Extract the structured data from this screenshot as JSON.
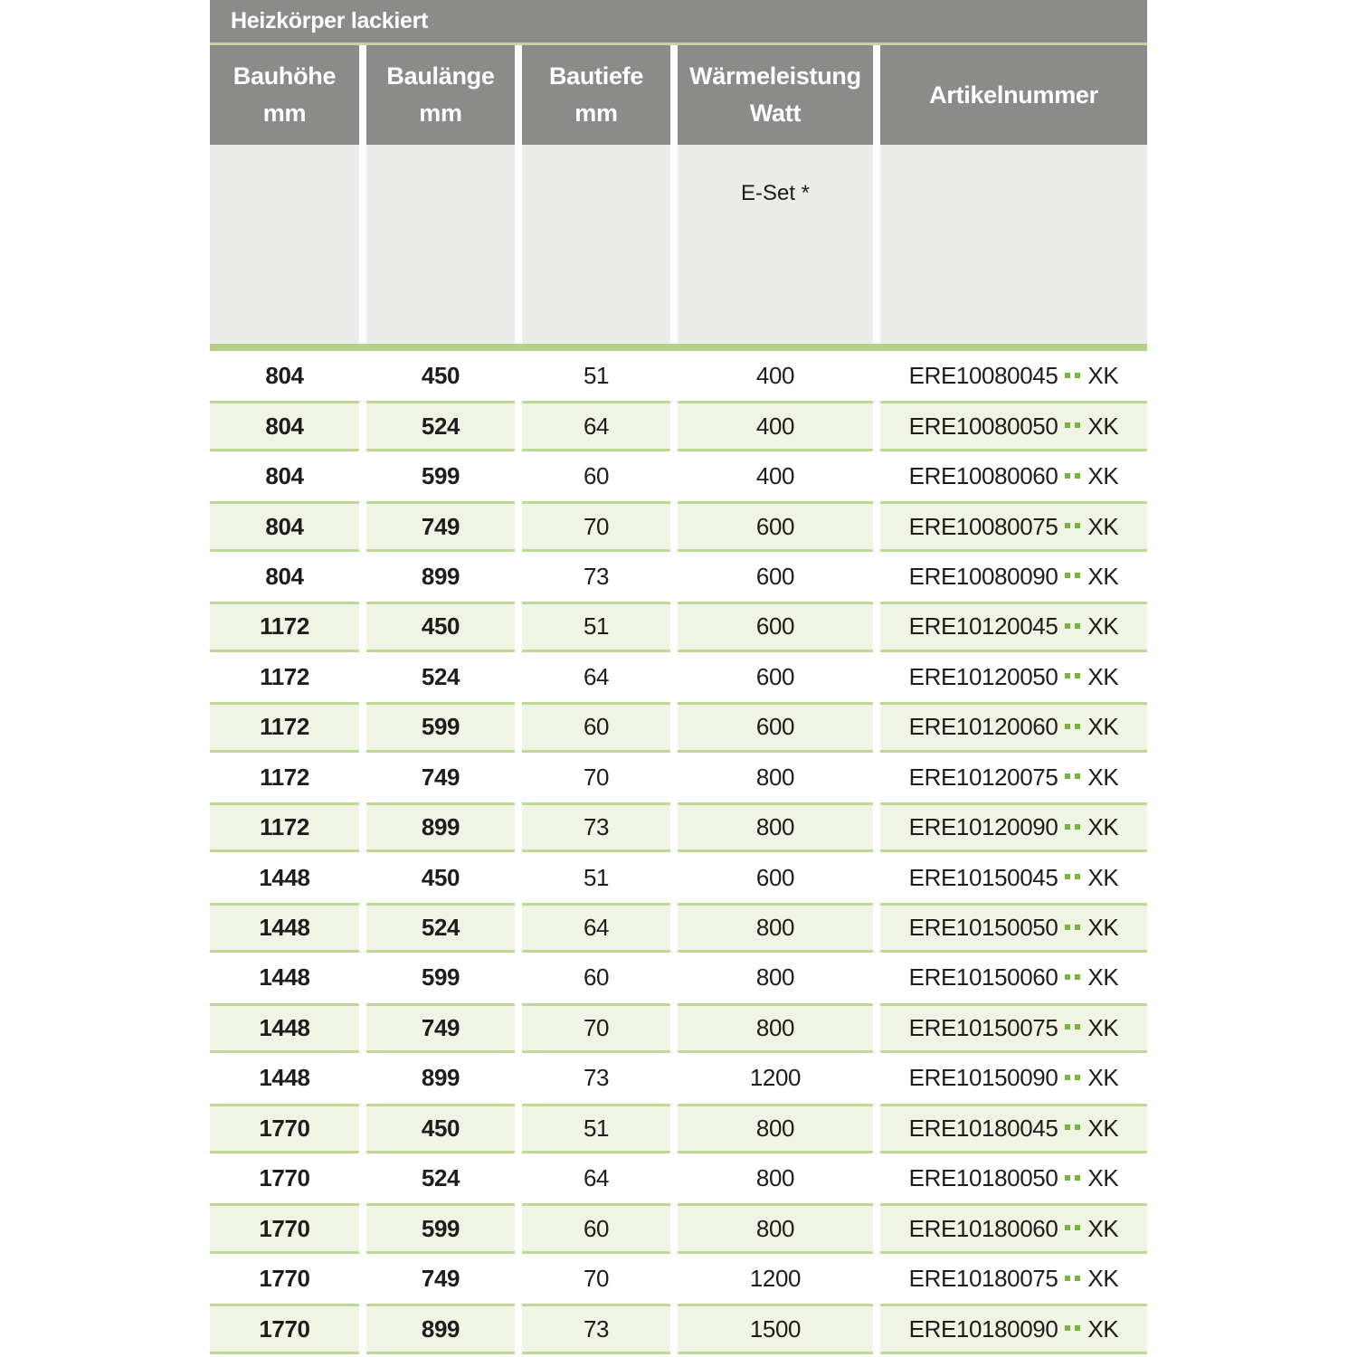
{
  "table": {
    "title": "Heizkörper lackiert",
    "columns": [
      {
        "label": "Bauhöhe",
        "unit": "mm"
      },
      {
        "label": "Baulänge",
        "unit": "mm"
      },
      {
        "label": "Bautiefe",
        "unit": "mm"
      },
      {
        "label": "Wärmeleistung",
        "unit": "Watt"
      },
      {
        "label": "Artikelnummer",
        "unit": ""
      }
    ],
    "subheader": {
      "eset_label": "E-Set *"
    },
    "rows": [
      {
        "bauhoehe": "804",
        "baulaenge": "450",
        "bautiefe": "51",
        "watt": "400",
        "artikel_code": "ERE10080045",
        "artikel_dots": "..",
        "artikel_suffix": "XK"
      },
      {
        "bauhoehe": "804",
        "baulaenge": "524",
        "bautiefe": "64",
        "watt": "400",
        "artikel_code": "ERE10080050",
        "artikel_dots": "..",
        "artikel_suffix": "XK"
      },
      {
        "bauhoehe": "804",
        "baulaenge": "599",
        "bautiefe": "60",
        "watt": "400",
        "artikel_code": "ERE10080060",
        "artikel_dots": "..",
        "artikel_suffix": "XK"
      },
      {
        "bauhoehe": "804",
        "baulaenge": "749",
        "bautiefe": "70",
        "watt": "600",
        "artikel_code": "ERE10080075",
        "artikel_dots": "..",
        "artikel_suffix": "XK"
      },
      {
        "bauhoehe": "804",
        "baulaenge": "899",
        "bautiefe": "73",
        "watt": "600",
        "artikel_code": "ERE10080090",
        "artikel_dots": "..",
        "artikel_suffix": "XK"
      },
      {
        "bauhoehe": "1172",
        "baulaenge": "450",
        "bautiefe": "51",
        "watt": "600",
        "artikel_code": "ERE10120045",
        "artikel_dots": "..",
        "artikel_suffix": "XK"
      },
      {
        "bauhoehe": "1172",
        "baulaenge": "524",
        "bautiefe": "64",
        "watt": "600",
        "artikel_code": "ERE10120050",
        "artikel_dots": "..",
        "artikel_suffix": "XK"
      },
      {
        "bauhoehe": "1172",
        "baulaenge": "599",
        "bautiefe": "60",
        "watt": "600",
        "artikel_code": "ERE10120060",
        "artikel_dots": "..",
        "artikel_suffix": "XK"
      },
      {
        "bauhoehe": "1172",
        "baulaenge": "749",
        "bautiefe": "70",
        "watt": "800",
        "artikel_code": "ERE10120075",
        "artikel_dots": "..",
        "artikel_suffix": "XK"
      },
      {
        "bauhoehe": "1172",
        "baulaenge": "899",
        "bautiefe": "73",
        "watt": "800",
        "artikel_code": "ERE10120090",
        "artikel_dots": "..",
        "artikel_suffix": "XK"
      },
      {
        "bauhoehe": "1448",
        "baulaenge": "450",
        "bautiefe": "51",
        "watt": "600",
        "artikel_code": "ERE10150045",
        "artikel_dots": "..",
        "artikel_suffix": "XK"
      },
      {
        "bauhoehe": "1448",
        "baulaenge": "524",
        "bautiefe": "64",
        "watt": "800",
        "artikel_code": "ERE10150050",
        "artikel_dots": "..",
        "artikel_suffix": "XK"
      },
      {
        "bauhoehe": "1448",
        "baulaenge": "599",
        "bautiefe": "60",
        "watt": "800",
        "artikel_code": "ERE10150060",
        "artikel_dots": "..",
        "artikel_suffix": "XK"
      },
      {
        "bauhoehe": "1448",
        "baulaenge": "749",
        "bautiefe": "70",
        "watt": "800",
        "artikel_code": "ERE10150075",
        "artikel_dots": "..",
        "artikel_suffix": "XK"
      },
      {
        "bauhoehe": "1448",
        "baulaenge": "899",
        "bautiefe": "73",
        "watt": "1200",
        "artikel_code": "ERE10150090",
        "artikel_dots": "..",
        "artikel_suffix": "XK"
      },
      {
        "bauhoehe": "1770",
        "baulaenge": "450",
        "bautiefe": "51",
        "watt": "800",
        "artikel_code": "ERE10180045",
        "artikel_dots": "..",
        "artikel_suffix": "XK"
      },
      {
        "bauhoehe": "1770",
        "baulaenge": "524",
        "bautiefe": "64",
        "watt": "800",
        "artikel_code": "ERE10180050",
        "artikel_dots": "..",
        "artikel_suffix": "XK"
      },
      {
        "bauhoehe": "1770",
        "baulaenge": "599",
        "bautiefe": "60",
        "watt": "800",
        "artikel_code": "ERE10180060",
        "artikel_dots": "..",
        "artikel_suffix": "XK"
      },
      {
        "bauhoehe": "1770",
        "baulaenge": "749",
        "bautiefe": "70",
        "watt": "1200",
        "artikel_code": "ERE10180075",
        "artikel_dots": "..",
        "artikel_suffix": "XK"
      },
      {
        "bauhoehe": "1770",
        "baulaenge": "899",
        "bautiefe": "73",
        "watt": "1500",
        "artikel_code": "ERE10180090",
        "artikel_dots": "..",
        "artikel_suffix": "XK"
      }
    ],
    "colors": {
      "header_gray": "#8b8b89",
      "subheader_gray": "#ebebe9",
      "title_underline_green": "#c6d2a2",
      "divider_bar_green": "#b3d189",
      "row_stripe_green": "#f0f4e5",
      "row_stripe_border_green": "#bed896",
      "placeholder_dot_green": "#79b43d",
      "text_dark": "#1d1d1b"
    }
  }
}
